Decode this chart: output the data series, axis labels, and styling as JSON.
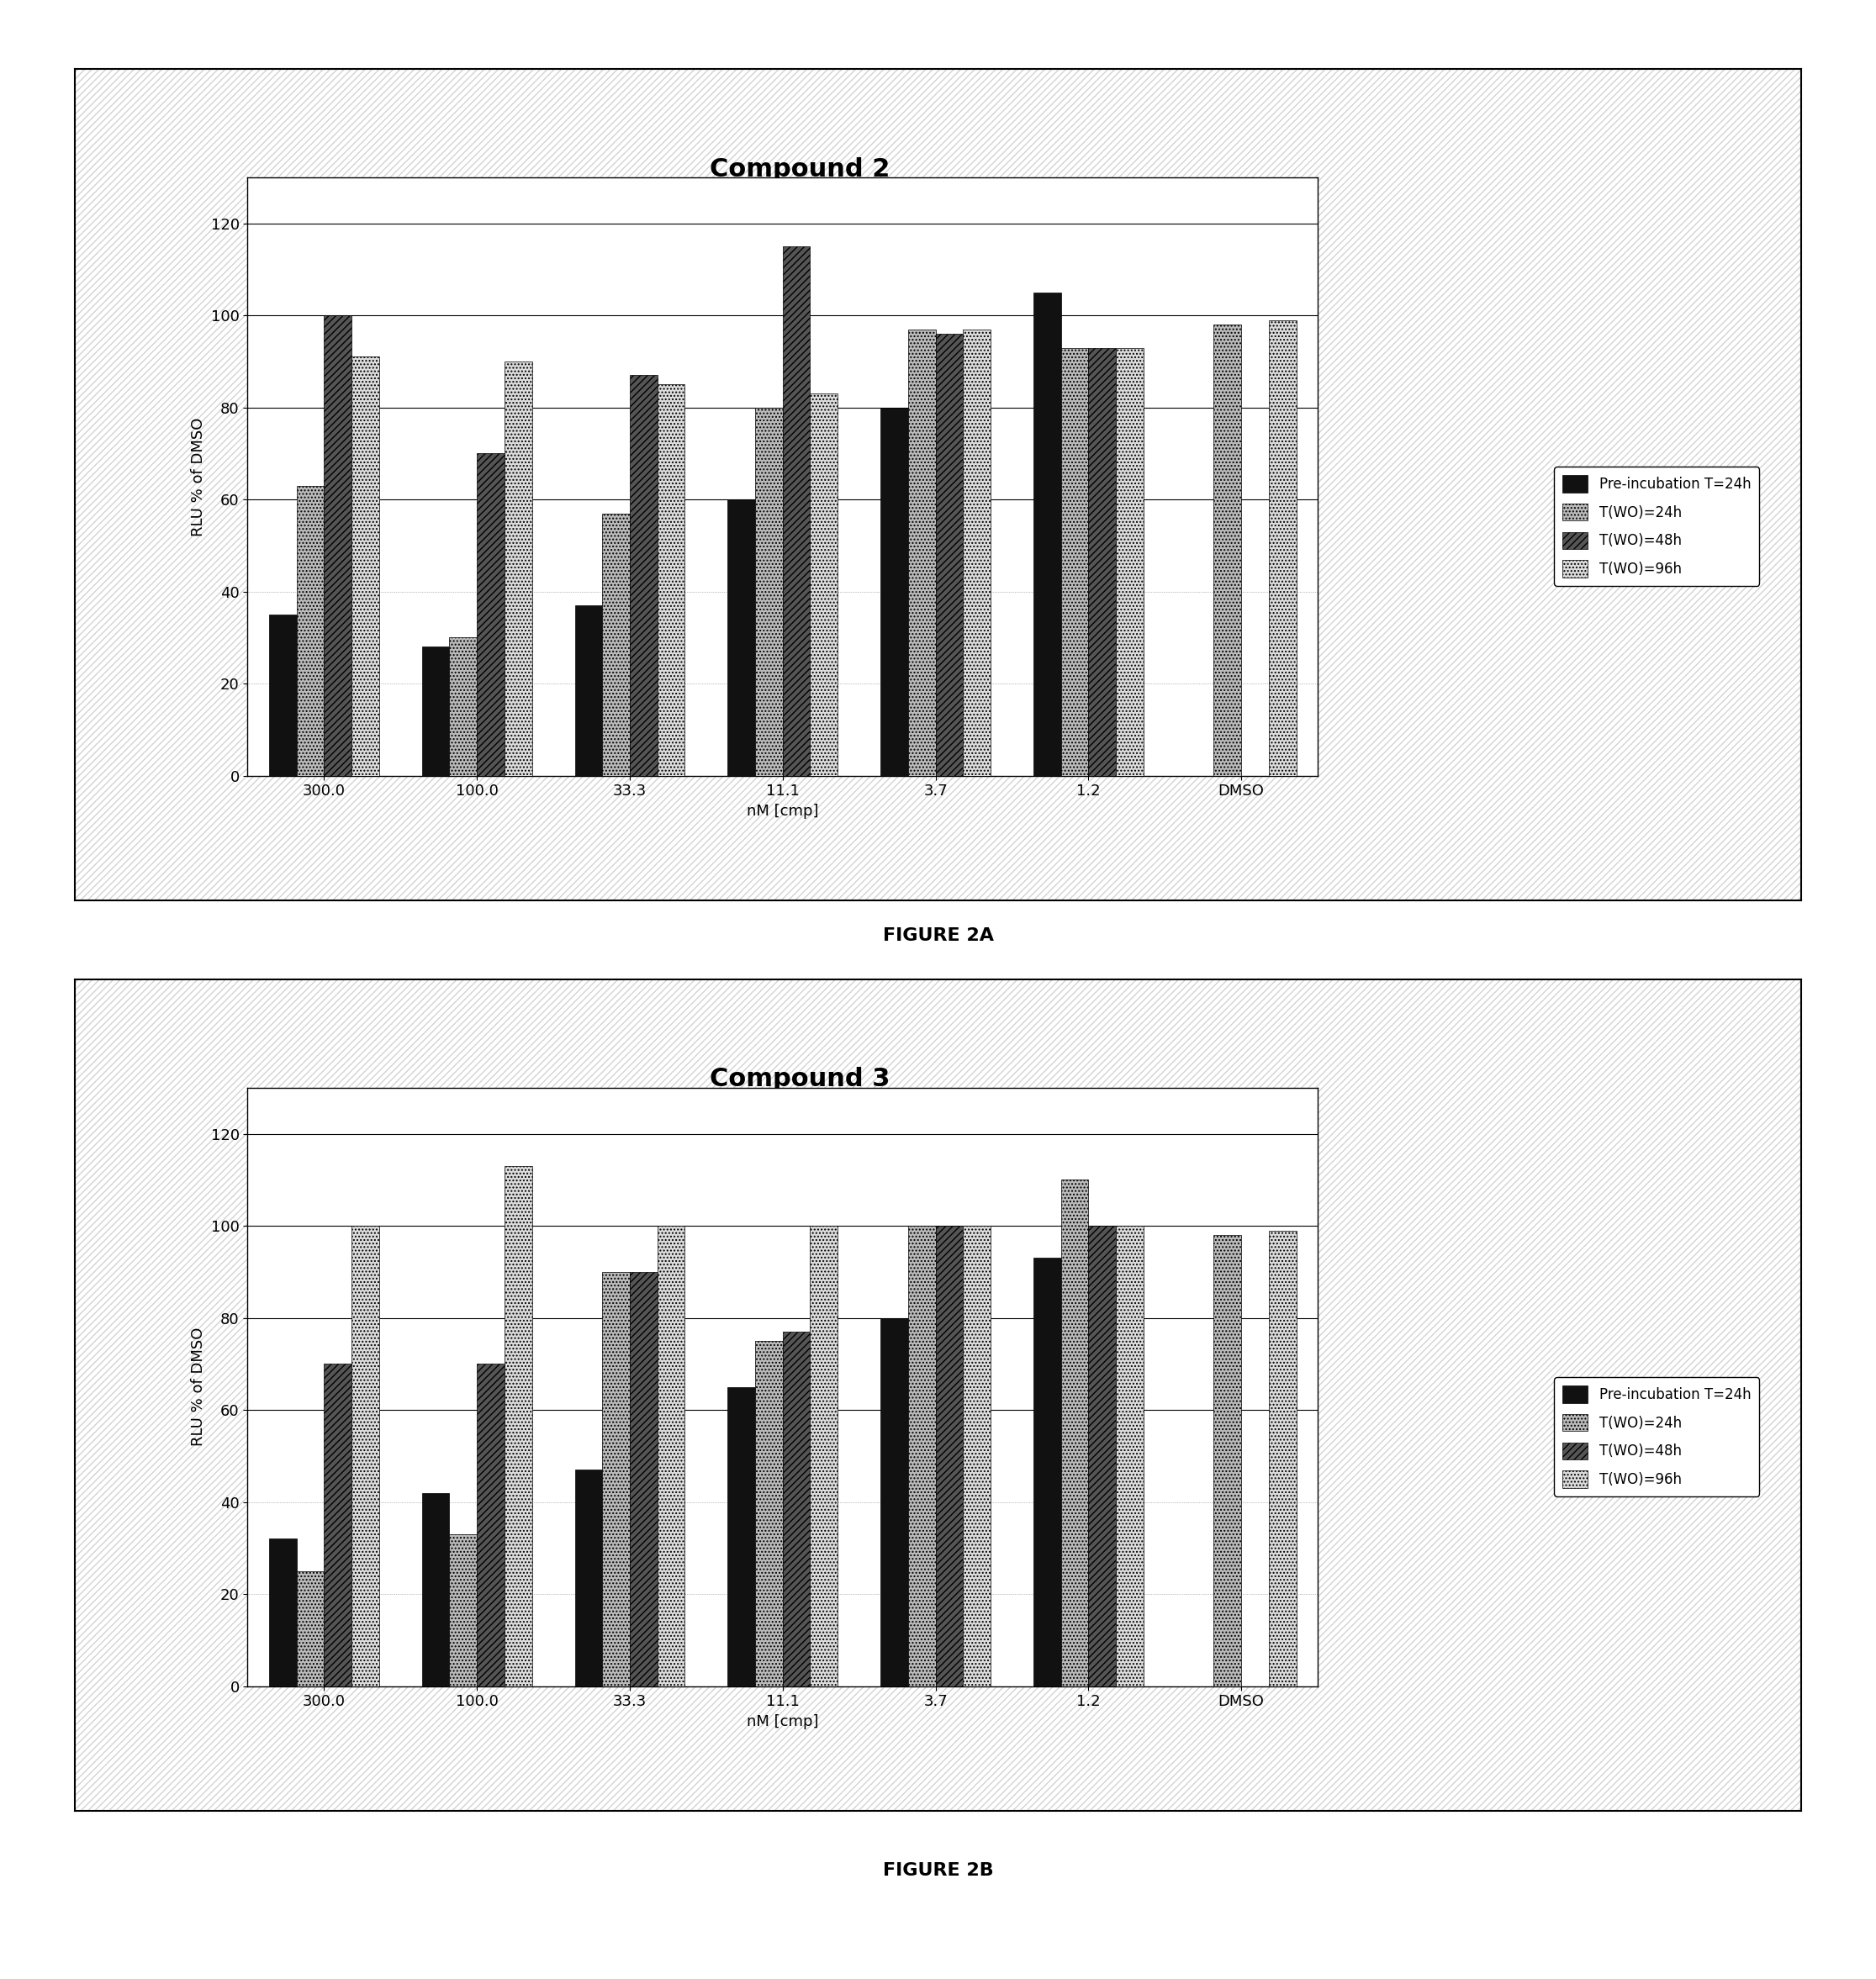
{
  "chart1": {
    "title": "Compound 2",
    "categories": [
      "300.0",
      "100.0",
      "33.3",
      "11.1",
      "3.7",
      "1.2",
      "DMSO"
    ],
    "series": {
      "Pre-incubation T=24h": [
        35,
        28,
        37,
        60,
        80,
        105,
        0
      ],
      "T(WO)=24h": [
        63,
        30,
        57,
        80,
        97,
        93,
        98
      ],
      "T(WO)=48h": [
        100,
        70,
        87,
        115,
        96,
        93,
        0
      ],
      "T(WO)=96h": [
        91,
        90,
        85,
        83,
        97,
        93,
        99
      ]
    },
    "ylabel": "RLU % of DMSO",
    "xlabel": "nM [cmp]",
    "ylim": [
      0,
      130
    ],
    "yticks": [
      0,
      20,
      40,
      60,
      80,
      100,
      120
    ],
    "legend_labels": [
      "Pre-incubation T=24h",
      "T(WO)=24h",
      "T(WO)=48h",
      "T(WO)=96h"
    ]
  },
  "chart2": {
    "title": "Compound 3",
    "categories": [
      "300.0",
      "100.0",
      "33.3",
      "11.1",
      "3.7",
      "1.2",
      "DMSO"
    ],
    "series": {
      "Pre-incubation T=24h": [
        32,
        42,
        47,
        65,
        80,
        93,
        0
      ],
      "T(WO)=24h": [
        25,
        33,
        90,
        75,
        100,
        110,
        98
      ],
      "T(WO)=48h": [
        70,
        70,
        90,
        77,
        100,
        100,
        0
      ],
      "T(WO)=96h": [
        100,
        113,
        100,
        100,
        100,
        100,
        99
      ]
    },
    "ylabel": "RLU % of DMSO",
    "xlabel": "nM [cmp]",
    "ylim": [
      0,
      130
    ],
    "yticks": [
      0,
      20,
      40,
      60,
      80,
      100,
      120
    ],
    "legend_labels": [
      "Pre-incubation T=24h",
      "T(WO)=24h",
      "T(WO)=48h",
      "T(WO)=96h"
    ]
  },
  "colors": {
    "Pre-incubation T=24h": "#111111",
    "T(WO)=24h": "#bbbbbb",
    "T(WO)=48h": "#555555",
    "T(WO)=96h": "#dddddd"
  },
  "hatches": {
    "Pre-incubation T=24h": "",
    "T(WO)=24h": "....",
    "T(WO)=48h": "////",
    "T(WO)=96h": "...."
  },
  "figure_caption1": "FIGURE 2A",
  "figure_caption2": "FIGURE 2B",
  "background_color": "#ffffff"
}
